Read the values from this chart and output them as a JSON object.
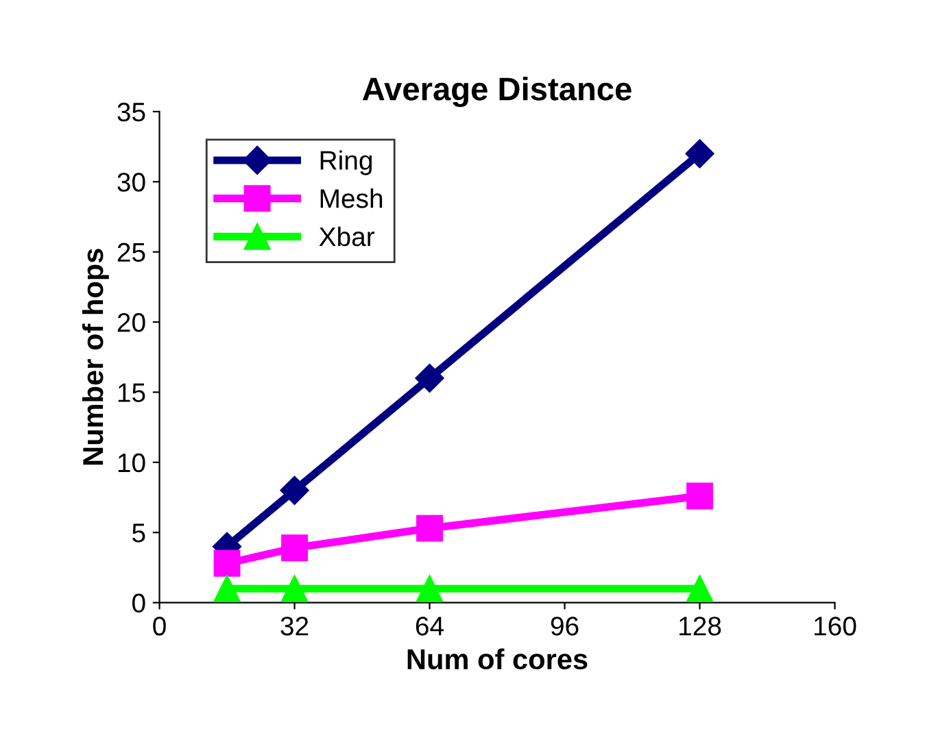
{
  "chart_data": {
    "type": "line",
    "title": "Average Distance",
    "xlabel": "Num of cores",
    "ylabel": "Number of hops",
    "x": [
      16,
      32,
      64,
      128
    ],
    "series": [
      {
        "name": "Ring",
        "color": "#000080",
        "marker": "diamond",
        "values": [
          4,
          8,
          16,
          32
        ]
      },
      {
        "name": "Mesh",
        "color": "#ff00ff",
        "marker": "square",
        "values": [
          2.8,
          3.9,
          5.3,
          7.6
        ]
      },
      {
        "name": "Xbar",
        "color": "#00ff00",
        "marker": "triangle",
        "values": [
          1,
          1,
          1,
          1
        ]
      }
    ],
    "xlim": [
      0,
      160
    ],
    "xticks": [
      0,
      32,
      64,
      96,
      128,
      160
    ],
    "ylim": [
      0,
      35
    ],
    "yticks": [
      0,
      5,
      10,
      15,
      20,
      25,
      30,
      35
    ],
    "grid": false,
    "legend": "top left",
    "line_style": "solid"
  }
}
